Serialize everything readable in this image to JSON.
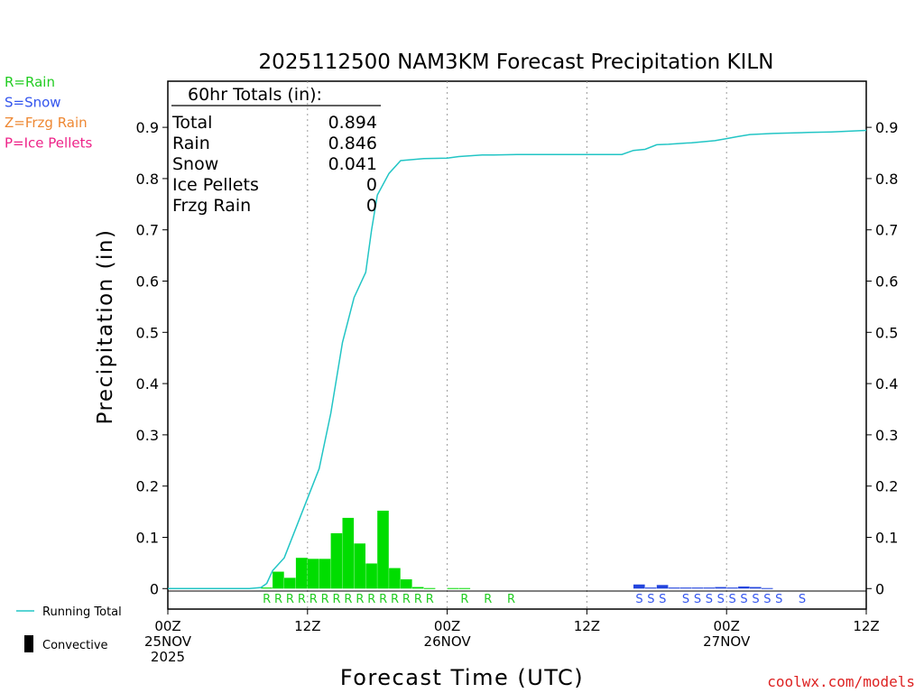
{
  "chart_data": {
    "type": "bar",
    "title": "2025112500 NAM3KM Forecast Precipitation KILN",
    "xlabel": "Forecast Time (UTC)",
    "ylabel": "Precipitation (in)",
    "xlim_hours": [
      0,
      60
    ],
    "ylim": [
      -0.04,
      0.99
    ],
    "yticks": [
      0,
      0.1,
      0.2,
      0.3,
      0.4,
      0.5,
      0.6,
      0.7,
      0.8,
      0.9
    ],
    "ytick_labels": [
      "0",
      "0.1",
      "0.2",
      "0.3",
      "0.4",
      "0.5",
      "0.6",
      "0.7",
      "0.8",
      "0.9"
    ],
    "xticks": [
      {
        "hour": 0,
        "labels": [
          "00Z",
          "25NOV",
          "2025"
        ]
      },
      {
        "hour": 12,
        "labels": [
          "12Z"
        ]
      },
      {
        "hour": 24,
        "labels": [
          "00Z",
          "26NOV"
        ]
      },
      {
        "hour": 36,
        "labels": [
          "12Z"
        ]
      },
      {
        "hour": 48,
        "labels": [
          "00Z",
          "27NOV"
        ]
      },
      {
        "hour": 60,
        "labels": [
          "12Z"
        ]
      }
    ],
    "totals_box": {
      "header": "60hr Totals (in):",
      "rows": [
        {
          "label": "Total",
          "value": "0.894"
        },
        {
          "label": "Rain",
          "value": "0.846"
        },
        {
          "label": "Snow",
          "value": "0.041"
        },
        {
          "label": "Ice Pellets",
          "value": "0"
        },
        {
          "label": "Frzg Rain",
          "value": "0"
        }
      ]
    },
    "type_legend": [
      {
        "text": "R=Rain",
        "color": "#22cc22"
      },
      {
        "text": "S=Snow",
        "color": "#3355ee"
      },
      {
        "text": "Z=Frzg Rain",
        "color": "#ee8833"
      },
      {
        "text": "P=Ice Pellets",
        "color": "#ee2288"
      }
    ],
    "series_legend": [
      {
        "text": "Running Total",
        "color": "#22c5c5"
      },
      {
        "text": "Convective",
        "color": "#000000"
      }
    ],
    "series": [
      {
        "name": "Hourly Rain",
        "color": "#00dd00",
        "hours": [
          8,
          9,
          10,
          11,
          12,
          13,
          14,
          15,
          16,
          17,
          18,
          19,
          20,
          21,
          22,
          24,
          25
        ],
        "values": [
          0.002,
          0.033,
          0.021,
          0.06,
          0.058,
          0.058,
          0.108,
          0.138,
          0.088,
          0.049,
          0.152,
          0.04,
          0.018,
          0.003,
          0.001,
          0.001,
          0.001
        ]
      },
      {
        "name": "Hourly Snow",
        "color": "#2244dd",
        "hours": [
          40,
          41,
          42,
          43,
          44,
          45,
          46,
          47,
          48,
          49,
          50,
          51
        ],
        "values": [
          0.008,
          0.002,
          0.007,
          0.002,
          0.002,
          0.002,
          0.002,
          0.003,
          0.002,
          0.004,
          0.003,
          0.001
        ]
      },
      {
        "name": "Running Total",
        "color": "#22c5c5",
        "hours": [
          0,
          7,
          8,
          8.5,
          9,
          10,
          11,
          12,
          13,
          14,
          15,
          16,
          17,
          17.5,
          18,
          19,
          20,
          22,
          24,
          25,
          27,
          28,
          30,
          36,
          39,
          40,
          41,
          42,
          43,
          45,
          47,
          48,
          49,
          50,
          52,
          55,
          57,
          60
        ],
        "values": [
          0,
          0,
          0.002,
          0.01,
          0.035,
          0.06,
          0.118,
          0.176,
          0.234,
          0.342,
          0.48,
          0.568,
          0.617,
          0.7,
          0.768,
          0.81,
          0.835,
          0.839,
          0.84,
          0.843,
          0.846,
          0.846,
          0.847,
          0.847,
          0.847,
          0.855,
          0.857,
          0.866,
          0.867,
          0.87,
          0.874,
          0.878,
          0.882,
          0.886,
          0.888,
          0.89,
          0.891,
          0.894
        ]
      }
    ],
    "precip_type_markers": [
      {
        "type": "R",
        "hours": [
          8,
          9,
          10,
          11,
          12,
          13,
          14,
          15,
          16,
          17,
          18,
          19,
          20,
          21,
          22,
          25,
          27,
          29
        ]
      },
      {
        "type": "S",
        "hours": [
          40,
          41,
          42,
          44,
          45,
          46,
          47,
          48,
          49,
          50,
          51,
          52,
          54
        ]
      }
    ],
    "watermark": "coolwx.com/models"
  }
}
